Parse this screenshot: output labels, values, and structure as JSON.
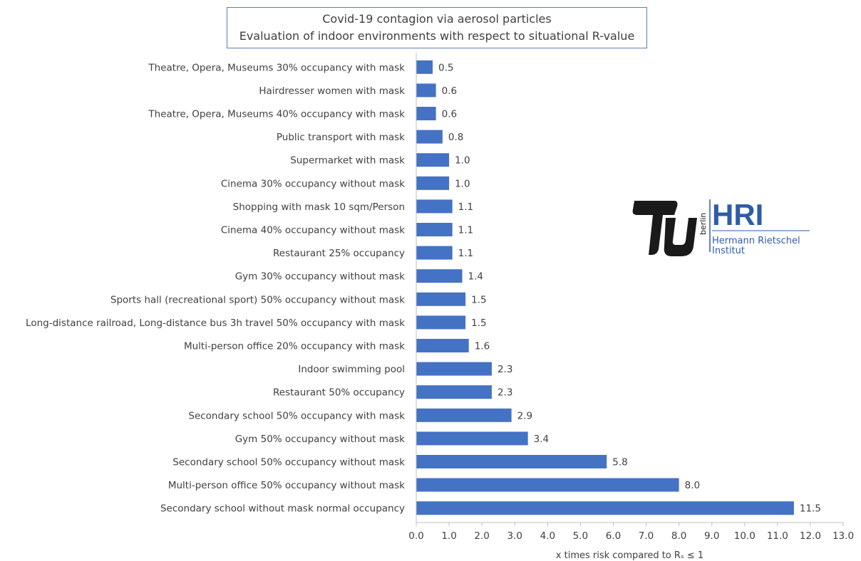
{
  "chart_data": {
    "type": "bar",
    "orientation": "horizontal",
    "title": "Covid-19 contagion via aerosol particles",
    "subtitle": "Evaluation of indoor environments with respect to situational R-value",
    "xlabel": "x times risk compared to Rₛ ≤ 1",
    "ylabel": "",
    "xlim": [
      0,
      13
    ],
    "x_tick_step": 1,
    "x_tick_labels": [
      "0.0",
      "1.0",
      "2.0",
      "3.0",
      "4.0",
      "5.0",
      "6.0",
      "7.0",
      "8.0",
      "9.0",
      "10.0",
      "11.0",
      "12.0",
      "13.0"
    ],
    "grid": false,
    "bar_color": "#4472c4",
    "categories": [
      "Theatre, Opera, Museums 30% occupancy with mask",
      "Hairdresser women with mask",
      "Theatre, Opera, Museums 40% occupancy with mask",
      "Public transport with mask",
      "Supermarket with mask",
      "Cinema 30% occupancy without mask",
      "Shopping with mask 10 sqm/Person",
      "Cinema 40% occupancy without mask",
      "Restaurant 25% occupancy",
      "Gym 30% occupancy without mask",
      "Sports hall (recreational sport) 50% occupancy without mask",
      "Long-distance railroad, Long-distance bus 3h travel 50% occupancy with mask",
      "Multi-person office 20% occupancy with mask",
      "Indoor swimming pool",
      "Restaurant 50% occupancy",
      "Secondary school 50% occupancy with mask",
      "Gym 50% occupancy without mask",
      "Secondary school 50% occupancy without mask",
      "Multi-person office 50% occupancy without mask",
      "Secondary school without mask normal occupancy"
    ],
    "values": [
      0.5,
      0.6,
      0.6,
      0.8,
      1.0,
      1.0,
      1.1,
      1.1,
      1.1,
      1.4,
      1.5,
      1.5,
      1.6,
      2.3,
      2.3,
      2.9,
      3.4,
      5.8,
      8.0,
      11.5
    ],
    "value_labels": [
      "0.5",
      "0.6",
      "0.6",
      "0.8",
      "1.0",
      "1.0",
      "1.1",
      "1.1",
      "1.1",
      "1.4",
      "1.5",
      "1.5",
      "1.6",
      "2.3",
      "2.3",
      "2.9",
      "3.4",
      "5.8",
      "8.0",
      "11.5"
    ]
  },
  "logo": {
    "org_short": "HRI",
    "vertical_text": "berlin",
    "org_line1": "Hermann Rietschel",
    "org_line2": "Institut",
    "color_dark": "#1a1a1a",
    "color_accent": "#2f5ca8"
  }
}
